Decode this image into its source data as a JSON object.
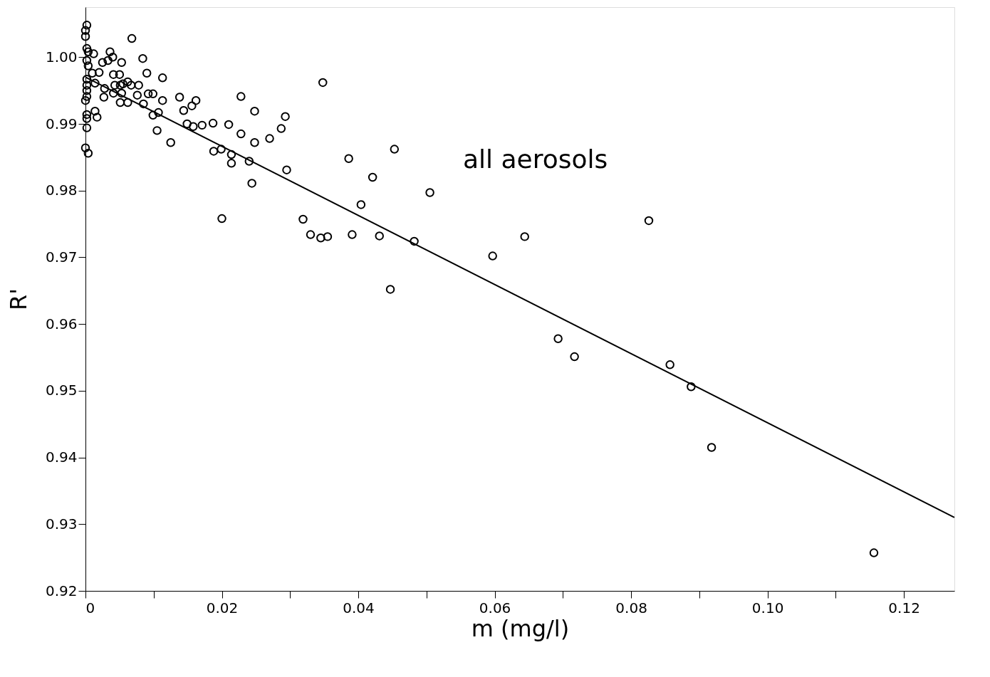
{
  "chart_data": {
    "type": "scatter",
    "xlabel": "m (mg/l)",
    "ylabel": "R'",
    "annotations": [
      "all aerosols"
    ],
    "xlim": [
      0,
      0.1274
    ],
    "ylim": [
      0.92,
      1.0075
    ],
    "xticks": [
      {
        "value": 0,
        "label": "0"
      },
      {
        "value": 0.01,
        "label": null
      },
      {
        "value": 0.02,
        "label": "0.02"
      },
      {
        "value": 0.03,
        "label": null
      },
      {
        "value": 0.04,
        "label": "0.04"
      },
      {
        "value": 0.05,
        "label": null
      },
      {
        "value": 0.06,
        "label": "0.06"
      },
      {
        "value": 0.07,
        "label": null
      },
      {
        "value": 0.08,
        "label": "0.08"
      },
      {
        "value": 0.09,
        "label": null
      },
      {
        "value": 0.1,
        "label": "0.10"
      },
      {
        "value": 0.11,
        "label": null
      },
      {
        "value": 0.12,
        "label": "0.12"
      }
    ],
    "yticks": [
      0.92,
      0.93,
      0.94,
      0.95,
      0.96,
      0.97,
      0.98,
      0.99,
      {
        "value": 1.0,
        "label": "1.00"
      }
    ],
    "series": [
      {
        "color": "#000000",
        "marker": "circle",
        "x": [
          0.0002,
          0,
          0,
          0.0002,
          0.0004,
          0.0002,
          0.0004,
          0.0002,
          0.0002,
          0.0002,
          0.0002,
          0,
          0.0002,
          0.0002,
          0.0002,
          0,
          0.0004,
          0.0012,
          0.001,
          0.0014,
          0.0014,
          0.0017,
          0.002,
          0.0025,
          0.0028,
          0.0027,
          0.0033,
          0.0036,
          0.004,
          0.0041,
          0.0043,
          0.0041,
          0.005,
          0.0053,
          0.0051,
          0.0053,
          0.0051,
          0.0055,
          0.0062,
          0.0062,
          0.0068,
          0.0067,
          0.0076,
          0.0078,
          0.0084,
          0.0085,
          0.009,
          0.0092,
          0.0099,
          0.0099,
          0.0107,
          0.0105,
          0.0113,
          0.0113,
          0.0125,
          0.0138,
          0.0144,
          0.0149,
          0.0156,
          0.0158,
          0.0162,
          0.0171,
          0.0187,
          0.0188,
          0.0199,
          0.02,
          0.021,
          0.0214,
          0.0214,
          0.0228,
          0.0228,
          0.024,
          0.0244,
          0.0248,
          0.0248,
          0.027,
          0.0287,
          0.0293,
          0.0295,
          0.0319,
          0.033,
          0.0345,
          0.0348,
          0.0355,
          0.0386,
          0.0391,
          0.0404,
          0.0421,
          0.0431,
          0.0447,
          0.0453,
          0.0482,
          0.0505,
          0.0597,
          0.0644,
          0.0693,
          0.0717,
          0.0826,
          0.0857,
          0.0888,
          0.0918,
          0.1156
        ],
        "values": [
          1.0048,
          1.004,
          1.0031,
          1.0013,
          1.0008,
          0.9995,
          0.9987,
          0.9967,
          0.9958,
          0.995,
          0.9941,
          0.9935,
          0.9914,
          0.9908,
          0.9894,
          0.9864,
          0.9856,
          1.0005,
          0.9976,
          0.9961,
          0.9919,
          0.991,
          0.9977,
          0.9992,
          0.9953,
          0.994,
          0.9995,
          1.0008,
          1.0,
          0.9974,
          0.9958,
          0.9946,
          0.9974,
          0.9992,
          0.9958,
          0.9946,
          0.9932,
          0.996,
          0.9963,
          0.9932,
          1.0028,
          0.9958,
          0.9943,
          0.9958,
          0.9998,
          0.993,
          0.9976,
          0.9945,
          0.9945,
          0.9913,
          0.9917,
          0.989,
          0.9969,
          0.9935,
          0.9872,
          0.994,
          0.992,
          0.99,
          0.9927,
          0.9896,
          0.9935,
          0.9898,
          0.9901,
          0.9859,
          0.9862,
          0.9758,
          0.9899,
          0.9854,
          0.9841,
          0.9941,
          0.9885,
          0.9844,
          0.9811,
          0.9919,
          0.9872,
          0.9878,
          0.9893,
          0.9911,
          0.9831,
          0.9757,
          0.9734,
          0.9729,
          0.9962,
          0.9731,
          0.9848,
          0.9734,
          0.9779,
          0.982,
          0.9732,
          0.9652,
          0.9862,
          0.9724,
          0.9797,
          0.9702,
          0.9731,
          0.9578,
          0.9551,
          0.9755,
          0.9539,
          0.9506,
          0.9415,
          0.9257
        ]
      },
      {
        "color": "#000000",
        "type": "line",
        "x": [
          0,
          0.1274
        ],
        "values": [
          0.997,
          0.931
        ]
      }
    ]
  }
}
